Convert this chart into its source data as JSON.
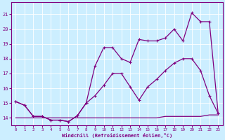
{
  "xlabel": "Windchill (Refroidissement éolien,°C)",
  "bg_color": "#cceeff",
  "line_color": "#800080",
  "xmin": -0.5,
  "xmax": 23.5,
  "ymin": 13.5,
  "ymax": 21.8,
  "yticks": [
    14,
    15,
    16,
    17,
    18,
    19,
    20,
    21
  ],
  "xticks": [
    0,
    1,
    2,
    3,
    4,
    5,
    6,
    7,
    8,
    9,
    10,
    11,
    12,
    13,
    14,
    15,
    16,
    17,
    18,
    19,
    20,
    21,
    22,
    23
  ],
  "line1_x": [
    0,
    1,
    2,
    3,
    4,
    5,
    6,
    7,
    8,
    9,
    10,
    11,
    12,
    13,
    14,
    15,
    16,
    17,
    18,
    19,
    20,
    21,
    22,
    23
  ],
  "line1_y": [
    14.0,
    14.0,
    14.0,
    14.0,
    14.0,
    14.0,
    14.0,
    14.0,
    14.0,
    14.0,
    14.0,
    14.0,
    14.0,
    14.0,
    14.0,
    14.0,
    14.0,
    14.1,
    14.1,
    14.1,
    14.1,
    14.1,
    14.2,
    14.2
  ],
  "line2_x": [
    0,
    1,
    2,
    3,
    4,
    5,
    6,
    7,
    8,
    9,
    10,
    11,
    12,
    13,
    14,
    15,
    16,
    17,
    18,
    19,
    20,
    21,
    22,
    23
  ],
  "line2_y": [
    15.1,
    14.85,
    14.1,
    14.1,
    13.85,
    13.85,
    13.75,
    14.15,
    15.0,
    15.5,
    16.2,
    17.0,
    17.0,
    16.1,
    15.2,
    16.1,
    16.6,
    17.2,
    17.7,
    18.0,
    18.0,
    17.2,
    15.5,
    14.3
  ],
  "line3_x": [
    0,
    1,
    2,
    3,
    4,
    5,
    6,
    7,
    8,
    9,
    10,
    11,
    12,
    13,
    14,
    15,
    16,
    17,
    18,
    19,
    20,
    21,
    22,
    23
  ],
  "line3_y": [
    15.1,
    14.85,
    14.1,
    14.1,
    13.85,
    13.85,
    13.75,
    14.15,
    15.0,
    17.5,
    18.75,
    18.75,
    18.0,
    17.75,
    19.3,
    19.2,
    19.2,
    19.4,
    20.0,
    19.2,
    21.1,
    20.5,
    20.5,
    14.3
  ]
}
